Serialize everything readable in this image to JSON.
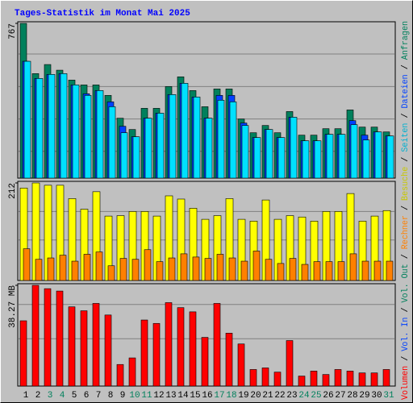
{
  "chart_data": [
    {
      "type": "bar",
      "title": "Tages-Statistik im Monat Mai 2025",
      "categories": [
        "1",
        "2",
        "3",
        "4",
        "5",
        "6",
        "7",
        "8",
        "9",
        "10",
        "11",
        "12",
        "13",
        "14",
        "15",
        "16",
        "17",
        "18",
        "19",
        "20",
        "21",
        "22",
        "23",
        "24",
        "25",
        "26",
        "27",
        "28",
        "29",
        "30",
        "31"
      ],
      "category_colors": [
        "#000000",
        "#000000",
        "#00805c",
        "#00805c",
        "#000000",
        "#000000",
        "#000000",
        "#000000",
        "#000000",
        "#00805c",
        "#00805c",
        "#000000",
        "#000000",
        "#000000",
        "#000000",
        "#000000",
        "#00805c",
        "#00805c",
        "#000000",
        "#000000",
        "#000000",
        "#000000",
        "#000000",
        "#00805c",
        "#00805c",
        "#000000",
        "#000000",
        "#000000",
        "#000000",
        "#000000",
        "#00805c"
      ],
      "series": [
        {
          "name": "Anfragen",
          "color": "#00805c",
          "values": [
            767,
            518,
            563,
            535,
            486,
            462,
            462,
            410,
            297,
            241,
            346,
            346,
            454,
            502,
            434,
            354,
            442,
            442,
            293,
            225,
            261,
            225,
            330,
            213,
            213,
            245,
            245,
            338,
            253,
            253,
            229
          ]
        },
        {
          "name": "Dateien",
          "color": "#0040ff",
          "values": [
            579,
            494,
            514,
            518,
            462,
            418,
            434,
            378,
            257,
            205,
            297,
            322,
            414,
            470,
            402,
            297,
            410,
            410,
            273,
            201,
            241,
            201,
            302,
            185,
            185,
            217,
            217,
            285,
            213,
            229,
            209
          ]
        },
        {
          "name": "Seiten",
          "color": "#00e0ff",
          "values": [
            579,
            494,
            514,
            518,
            462,
            410,
            434,
            354,
            225,
            205,
            297,
            322,
            414,
            470,
            402,
            297,
            386,
            378,
            261,
            201,
            241,
            201,
            302,
            185,
            185,
            217,
            217,
            265,
            189,
            229,
            209
          ]
        }
      ],
      "ylim": [
        0,
        767
      ],
      "yticks": [
        767
      ],
      "ygrid": [
        133,
        293,
        454,
        615
      ]
    },
    {
      "type": "bar",
      "series": [
        {
          "name": "Besuche",
          "color": "#ffff00",
          "values": [
            201,
            212,
            207,
            207,
            178,
            155,
            193,
            140,
            141,
            150,
            150,
            140,
            184,
            177,
            157,
            133,
            141,
            178,
            133,
            129,
            175,
            133,
            141,
            138,
            129,
            150,
            150,
            189,
            129,
            140,
            152
          ]
        },
        {
          "name": "Rechner",
          "color": "#ff8000",
          "values": [
            69,
            46,
            49,
            55,
            42,
            57,
            62,
            32,
            48,
            46,
            67,
            41,
            49,
            58,
            51,
            48,
            57,
            49,
            42,
            64,
            46,
            37,
            48,
            35,
            41,
            41,
            41,
            58,
            42,
            42,
            42
          ]
        }
      ],
      "ylim": [
        0,
        212
      ],
      "yticks": [
        212
      ],
      "ygrid": [
        88,
        150
      ]
    },
    {
      "type": "bar",
      "series": [
        {
          "name": "Volumen",
          "color": "#ff0000",
          "values": [
            24.8,
            38.27,
            37.0,
            36.1,
            30.1,
            28.6,
            31.4,
            27.0,
            8.2,
            10.7,
            25.1,
            23.8,
            31.7,
            29.8,
            28.2,
            18.5,
            31.4,
            20.1,
            16.0,
            6.3,
            6.9,
            5.3,
            17.3,
            3.8,
            5.7,
            4.4,
            6.3,
            5.7,
            5.0,
            5.0,
            6.3
          ]
        }
      ],
      "ylim": [
        0,
        38.27
      ],
      "yticks": [
        {
          "value": 38.27,
          "label": "38.27 MB"
        }
      ],
      "ygrid": [
        18,
        31
      ]
    }
  ],
  "legend": [
    {
      "name": "Volumen",
      "color": "#ff0000"
    },
    {
      "name": "Vol. In",
      "color": "#0040ff"
    },
    {
      "name": "Vol. Out",
      "color": "#00805c"
    },
    {
      "name": "Rechner",
      "color": "#ff8000"
    },
    {
      "name": "Besuche",
      "color": "#c8c800"
    },
    {
      "name": "Seiten",
      "color": "#00b0d0"
    },
    {
      "name": "Dateien",
      "color": "#0040ff"
    },
    {
      "name": "Anfragen",
      "color": "#00805c"
    }
  ],
  "legend_separator": " / "
}
